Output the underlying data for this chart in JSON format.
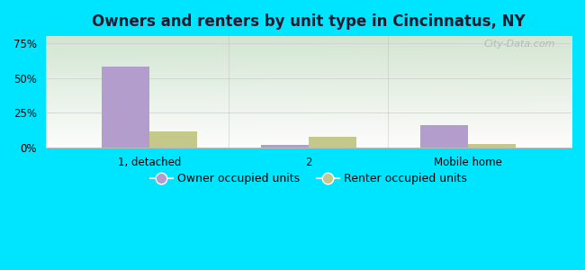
{
  "title": "Owners and renters by unit type in Cincinnatus, NY",
  "categories": [
    "1, detached",
    "2",
    "Mobile home"
  ],
  "owner_values": [
    58,
    2,
    16
  ],
  "renter_values": [
    12,
    8,
    3
  ],
  "owner_color": "#b39dcc",
  "renter_color": "#c4c98a",
  "yticks": [
    0,
    25,
    50,
    75
  ],
  "ylim": [
    0,
    80
  ],
  "background_outer": "#00e5ff",
  "watermark": "City-Data.com",
  "bar_width": 0.3,
  "legend_owner": "Owner occupied units",
  "legend_renter": "Renter occupied units",
  "title_fontsize": 12,
  "tick_fontsize": 8.5,
  "legend_fontsize": 9
}
